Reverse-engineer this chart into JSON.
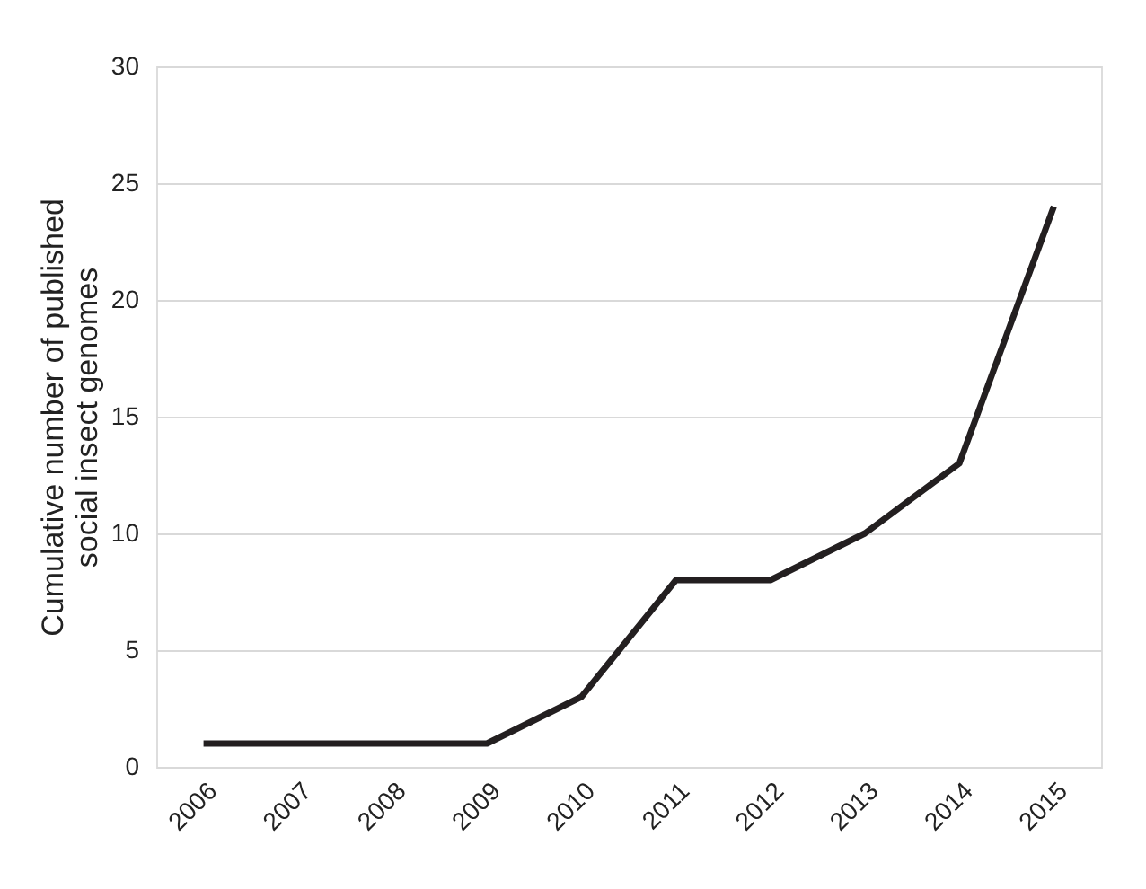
{
  "chart_data": {
    "type": "line",
    "ylabel": "Cumulative number of published\nsocial insect genomes",
    "categories": [
      "2006",
      "2007",
      "2008",
      "2009",
      "2010",
      "2011",
      "2012",
      "2013",
      "2014",
      "2015"
    ],
    "series": [
      {
        "color": "#231f20",
        "values": [
          1,
          1,
          1,
          1,
          3,
          8,
          8,
          10,
          13,
          24
        ]
      }
    ],
    "ylim": [
      0,
      30
    ],
    "yticks": [
      0,
      5,
      10,
      15,
      20,
      25,
      30
    ],
    "grid": "y",
    "marker": "none",
    "line_style": "solid"
  }
}
